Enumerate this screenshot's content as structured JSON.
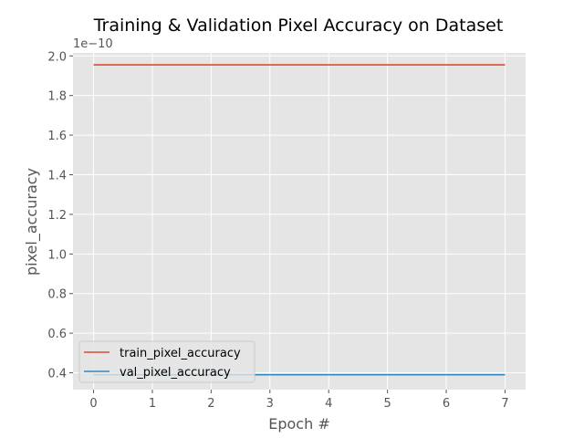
{
  "chart_data": {
    "type": "line",
    "title": "Training & Validation Pixel Accuracy on Dataset",
    "xlabel": "Epoch #",
    "ylabel": "pixel_accuracy",
    "y_offset_label": "1e−10",
    "x": [
      0,
      1,
      2,
      3,
      4,
      5,
      6,
      7
    ],
    "xlim": [
      -0.35,
      7.35
    ],
    "ylim": [
      0.315,
      2.015
    ],
    "xticks": [
      0,
      1,
      2,
      3,
      4,
      5,
      6,
      7
    ],
    "yticks": [
      0.4,
      0.6,
      0.8,
      1.0,
      1.2,
      1.4,
      1.6,
      1.8,
      2.0
    ],
    "ytick_labels": [
      "0.4",
      "0.6",
      "0.8",
      "1.0",
      "1.2",
      "1.4",
      "1.6",
      "1.8",
      "2.0"
    ],
    "grid": true,
    "legend_position": "lower-left",
    "series": [
      {
        "name": "train_pixel_accuracy",
        "color": "#e24a33",
        "values": [
          1.955,
          1.955,
          1.955,
          1.955,
          1.955,
          1.955,
          1.955,
          1.955
        ]
      },
      {
        "name": "val_pixel_accuracy",
        "color": "#348abd",
        "values": [
          0.39,
          0.39,
          0.39,
          0.39,
          0.39,
          0.39,
          0.39,
          0.39
        ]
      }
    ],
    "background_color": "#e5e5e5",
    "grid_color": "#ffffff"
  }
}
